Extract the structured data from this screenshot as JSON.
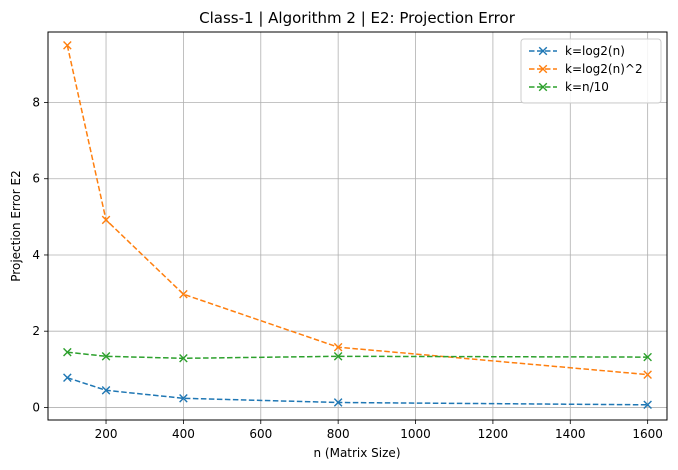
{
  "chart_data": {
    "type": "line",
    "title": "Class-1 | Algorithm 2 | E2: Projection Error",
    "xlabel": "n (Matrix Size)",
    "ylabel": "Projection Error E2",
    "xlim": [
      50,
      1650
    ],
    "ylim": [
      -0.33,
      9.85
    ],
    "xticks": [
      200,
      400,
      600,
      800,
      1000,
      1200,
      1400,
      1600
    ],
    "yticks": [
      0,
      2,
      4,
      6,
      8
    ],
    "grid": true,
    "legend_position": "top-right",
    "x": [
      100,
      200,
      400,
      800,
      1600
    ],
    "series": [
      {
        "name": "k=log2(n)",
        "color": "#1f77b4",
        "values": [
          0.78,
          0.45,
          0.24,
          0.13,
          0.07
        ]
      },
      {
        "name": "k=log2(n)^2",
        "color": "#ff7f0e",
        "values": [
          9.5,
          4.92,
          2.97,
          1.58,
          0.86
        ]
      },
      {
        "name": "k=n/10",
        "color": "#2ca02c",
        "values": [
          1.45,
          1.34,
          1.29,
          1.34,
          1.32
        ]
      }
    ]
  }
}
